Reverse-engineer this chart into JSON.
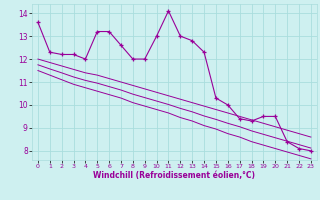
{
  "x": [
    0,
    1,
    2,
    3,
    4,
    5,
    6,
    7,
    8,
    9,
    10,
    11,
    12,
    13,
    14,
    15,
    16,
    17,
    18,
    19,
    20,
    21,
    22,
    23
  ],
  "y_main": [
    13.6,
    12.3,
    12.2,
    12.2,
    12.0,
    13.2,
    13.2,
    12.6,
    12.0,
    12.0,
    13.0,
    14.1,
    13.0,
    12.8,
    12.3,
    10.3,
    10.0,
    9.4,
    9.3,
    9.5,
    9.5,
    8.4,
    8.1,
    8.0
  ],
  "y_line1": [
    12.0,
    11.85,
    11.7,
    11.55,
    11.4,
    11.3,
    11.15,
    11.0,
    10.85,
    10.7,
    10.55,
    10.4,
    10.25,
    10.1,
    9.95,
    9.8,
    9.65,
    9.5,
    9.35,
    9.2,
    9.05,
    8.9,
    8.75,
    8.6
  ],
  "y_line2": [
    11.5,
    11.3,
    11.1,
    10.9,
    10.75,
    10.6,
    10.45,
    10.3,
    10.1,
    9.95,
    9.8,
    9.65,
    9.45,
    9.3,
    9.1,
    8.95,
    8.75,
    8.6,
    8.4,
    8.25,
    8.1,
    7.95,
    7.8,
    7.65
  ],
  "y_line3": [
    11.75,
    11.57,
    11.4,
    11.22,
    11.07,
    10.95,
    10.8,
    10.65,
    10.47,
    10.32,
    10.17,
    10.02,
    9.85,
    9.7,
    9.52,
    9.37,
    9.2,
    9.05,
    8.87,
    8.72,
    8.57,
    8.42,
    8.27,
    8.12
  ],
  "bg_color": "#cef0f0",
  "grid_color": "#aadddd",
  "line_color": "#990099",
  "xlabel": "Windchill (Refroidissement éolien,°C)",
  "xlabel_color": "#990099",
  "yticks": [
    8,
    9,
    10,
    11,
    12,
    13,
    14
  ],
  "xticks": [
    0,
    1,
    2,
    3,
    4,
    5,
    6,
    7,
    8,
    9,
    10,
    11,
    12,
    13,
    14,
    15,
    16,
    17,
    18,
    19,
    20,
    21,
    22,
    23
  ],
  "ylim": [
    7.6,
    14.4
  ],
  "xlim": [
    -0.5,
    23.5
  ]
}
